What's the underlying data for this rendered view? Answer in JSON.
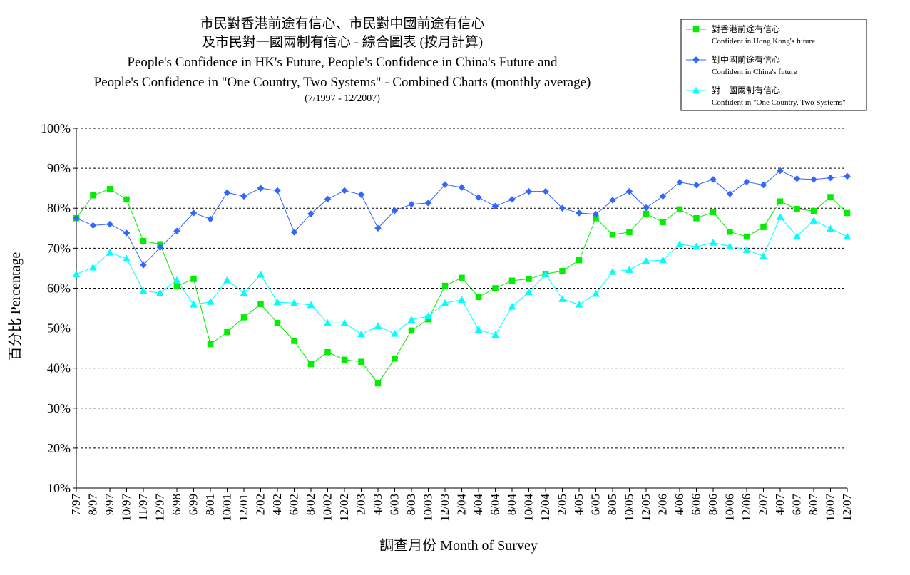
{
  "chart_data": {
    "type": "line",
    "title_lines": [
      "市民對香港前途有信心、市民對中國前途有信心",
      "及市民對一國兩制有信心 - 綜合圖表 (按月計算)",
      "People's Confidence in HK's Future, People's Confidence in China's Future and",
      "People's Confidence in \"One Country, Two Systems\" - Combined Charts (monthly average)"
    ],
    "subtitle": "(7/1997 - 12/2007)",
    "xlabel": "調查月份 Month of Survey",
    "ylabel": "百分比 Percentage",
    "ylim": [
      10,
      100
    ],
    "y_ticks": [
      "10%",
      "20%",
      "30%",
      "40%",
      "50%",
      "60%",
      "70%",
      "80%",
      "90%",
      "100%"
    ],
    "grid": "horizontal dashed",
    "legend_position": "top-right",
    "categories": [
      "7/97",
      "8/97",
      "9/97",
      "10/97",
      "11/97",
      "12/97",
      "6/98",
      "6/99",
      "8/01",
      "10/01",
      "12/01",
      "2/02",
      "4/02",
      "6/02",
      "8/02",
      "10/02",
      "12/02",
      "2/03",
      "4/03",
      "6/03",
      "8/03",
      "10/03",
      "12/03",
      "2/04",
      "4/04",
      "6/04",
      "8/04",
      "10/04",
      "12/04",
      "2/05",
      "4/05",
      "6/05",
      "8/05",
      "10/05",
      "12/05",
      "2/06",
      "4/06",
      "6/06",
      "8/06",
      "10/06",
      "12/06",
      "2/07",
      "4/07",
      "6/07",
      "8/07",
      "10/07",
      "12/07"
    ],
    "series": [
      {
        "name": "對香港前途有信心",
        "name_en": "Confident in Hong Kong's future",
        "color": "#00ee00",
        "marker": "square",
        "values": [
          77.5,
          83.2,
          84.8,
          82.2,
          71.8,
          71.0,
          60.5,
          62.3,
          46.0,
          49.0,
          52.7,
          56.0,
          51.3,
          46.8,
          41.0,
          44.0,
          42.1,
          41.6,
          36.2,
          42.4,
          49.4,
          52.2,
          60.6,
          62.6,
          57.8,
          60.0,
          61.9,
          62.3,
          63.6,
          64.3,
          67.0,
          77.5,
          73.4,
          74.0,
          78.6,
          76.5,
          79.7,
          77.5,
          79.0,
          74.1,
          72.9,
          75.3,
          81.7,
          79.8,
          79.3,
          82.8,
          78.8
        ]
      },
      {
        "name": "對中國前途有信心",
        "name_en": "Confident in China's future",
        "color": "#3366ff",
        "marker": "diamond",
        "values": [
          77.5,
          75.7,
          76.0,
          73.8,
          65.8,
          70.2,
          74.3,
          78.8,
          77.3,
          83.9,
          83.0,
          85.0,
          84.4,
          74.0,
          78.6,
          82.3,
          84.4,
          83.4,
          75.0,
          79.4,
          81.0,
          81.3,
          85.9,
          85.2,
          82.7,
          80.5,
          82.2,
          84.2,
          84.2,
          80.0,
          78.8,
          78.5,
          82.0,
          84.2,
          80.1,
          83.0,
          86.5,
          85.8,
          87.2,
          83.6,
          86.6,
          85.8,
          89.4,
          87.4,
          87.2,
          87.6,
          88.0
        ]
      },
      {
        "name": "對一國兩制有信心",
        "name_en": "Confident in \"One Country, Two Systems\"",
        "color": "#00ffff",
        "marker": "triangle",
        "values": [
          63.5,
          65.2,
          68.9,
          67.4,
          59.4,
          58.8,
          62.0,
          55.9,
          56.6,
          62.0,
          58.8,
          63.4,
          56.5,
          56.3,
          55.8,
          51.3,
          51.3,
          48.5,
          50.5,
          48.6,
          52.1,
          53.0,
          56.3,
          57.1,
          49.6,
          48.3,
          55.4,
          59.0,
          63.5,
          57.3,
          55.9,
          58.6,
          64.1,
          64.6,
          66.8,
          67.0,
          71.0,
          70.4,
          71.4,
          70.5,
          69.6,
          68.0,
          77.8,
          73.0,
          76.9,
          74.9,
          72.9
        ]
      }
    ]
  }
}
